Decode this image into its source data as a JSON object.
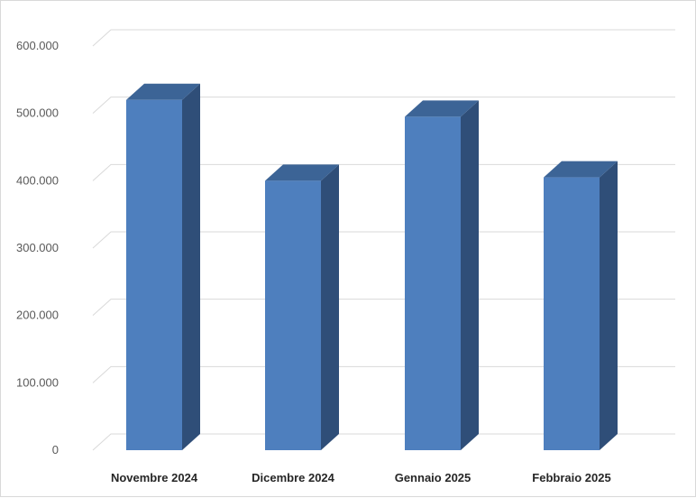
{
  "chart_data": {
    "type": "bar",
    "style": "3d-column",
    "categories": [
      "Novembre 2024",
      "Dicembre 2024",
      "Gennaio 2025",
      "Febbraio 2025"
    ],
    "values": [
      520000,
      400000,
      495000,
      405000
    ],
    "ylim": [
      0,
      600000
    ],
    "yticks": [
      "0",
      "100.000",
      "200.000",
      "300.000",
      "400.000",
      "500.000",
      "600.000"
    ],
    "grid": true,
    "legend": "none",
    "colors": {
      "front": "#4e7fbe",
      "top": "#3c6496",
      "side": "#2f4e78"
    }
  }
}
